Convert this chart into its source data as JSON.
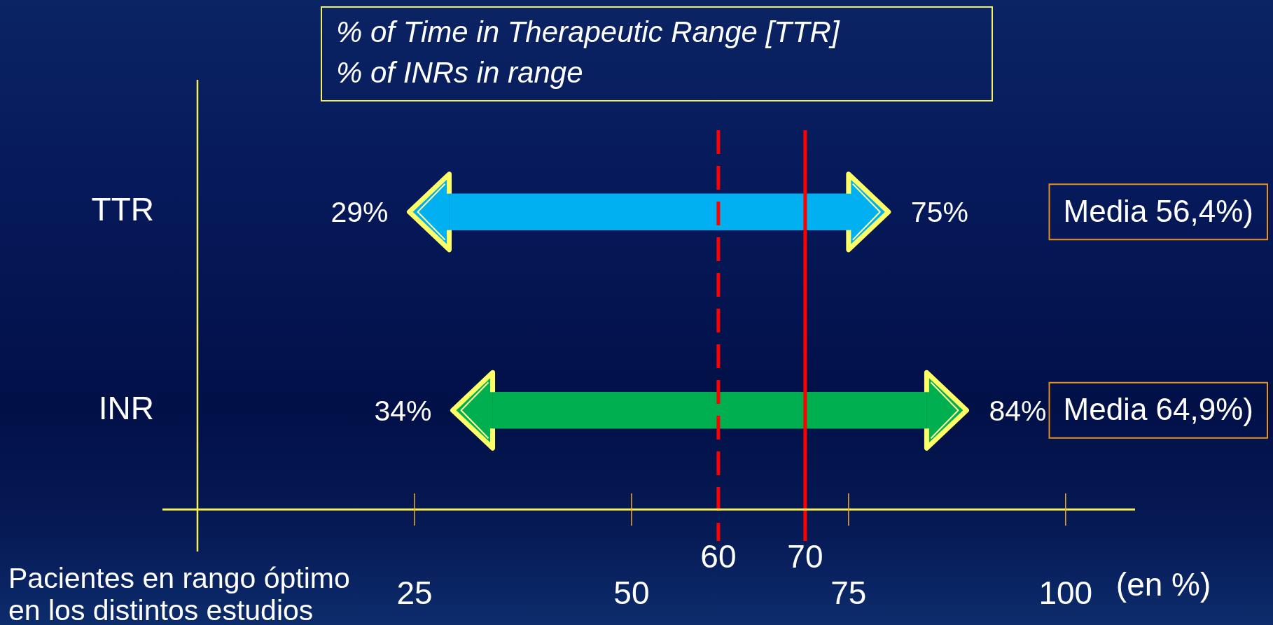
{
  "chart_data": {
    "type": "bar",
    "orientation": "horizontal",
    "title": "% of Time in Therapeutic Range [TTR]",
    "subtitle": "% of INRs in range",
    "xlabel": "Pacientes en rango óptimo en los distintos estudios",
    "categories": [
      "TTR",
      "INR"
    ],
    "base": [
      29,
      34
    ],
    "values": [
      46,
      50
    ],
    "colors": [
      "#00b0f0",
      "#00b050"
    ],
    "xlim": [
      0,
      108
    ],
    "xticks": [
      25,
      50,
      75,
      100
    ],
    "ref_lines": [
      {
        "axis": "x",
        "value": 60,
        "label": "60",
        "color": "#ff0000",
        "line_style": "dashed"
      },
      {
        "axis": "x",
        "value": 70,
        "label": "70",
        "color": "#ff0000",
        "line_style": "solid"
      }
    ],
    "annotations": [
      {
        "text": "29%",
        "x": 29,
        "y": "TTR"
      },
      {
        "text": "75%",
        "x": 75,
        "y": "TTR"
      },
      {
        "text": "34%",
        "x": 34,
        "y": "INR"
      },
      {
        "text": "84%",
        "x": 84,
        "y": "INR"
      },
      "Media 56,4%)",
      "Media 64,9%)",
      "(en %)"
    ]
  }
}
